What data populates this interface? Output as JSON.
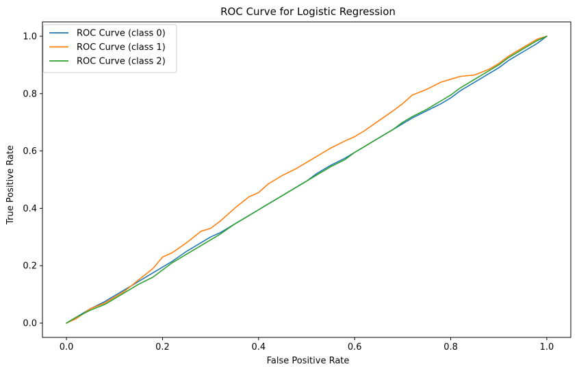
{
  "chart_data": {
    "type": "line",
    "title": "ROC Curve for Logistic Regression",
    "xlabel": "False Positive Rate",
    "ylabel": "True Positive Rate",
    "xlim": [
      -0.05,
      1.05
    ],
    "ylim": [
      -0.05,
      1.05
    ],
    "x_ticks": [
      "0.0",
      "0.2",
      "0.4",
      "0.6",
      "0.8",
      "1.0"
    ],
    "y_ticks": [
      "0.0",
      "0.2",
      "0.4",
      "0.6",
      "0.8",
      "1.0"
    ],
    "grid": false,
    "legend_position": "upper-left",
    "series": [
      {
        "name": "ROC Curve (class 0)",
        "color": "#1f77b4",
        "x": [
          0.0,
          0.02,
          0.05,
          0.08,
          0.1,
          0.12,
          0.15,
          0.18,
          0.2,
          0.22,
          0.25,
          0.28,
          0.3,
          0.32,
          0.35,
          0.38,
          0.4,
          0.42,
          0.45,
          0.48,
          0.5,
          0.52,
          0.55,
          0.58,
          0.6,
          0.62,
          0.65,
          0.68,
          0.7,
          0.72,
          0.75,
          0.78,
          0.8,
          0.82,
          0.85,
          0.88,
          0.9,
          0.92,
          0.95,
          0.98,
          1.0
        ],
        "y": [
          0.0,
          0.02,
          0.05,
          0.075,
          0.095,
          0.115,
          0.145,
          0.175,
          0.195,
          0.215,
          0.25,
          0.28,
          0.3,
          0.315,
          0.345,
          0.375,
          0.395,
          0.415,
          0.445,
          0.475,
          0.495,
          0.52,
          0.55,
          0.575,
          0.595,
          0.615,
          0.645,
          0.675,
          0.695,
          0.715,
          0.74,
          0.765,
          0.785,
          0.81,
          0.84,
          0.87,
          0.89,
          0.915,
          0.945,
          0.975,
          1.0
        ]
      },
      {
        "name": "ROC Curve (class 1)",
        "color": "#ff7f0e",
        "x": [
          0.0,
          0.02,
          0.05,
          0.08,
          0.1,
          0.12,
          0.15,
          0.18,
          0.2,
          0.22,
          0.25,
          0.28,
          0.3,
          0.32,
          0.35,
          0.38,
          0.4,
          0.42,
          0.45,
          0.48,
          0.5,
          0.52,
          0.55,
          0.58,
          0.6,
          0.62,
          0.65,
          0.68,
          0.7,
          0.72,
          0.75,
          0.78,
          0.8,
          0.82,
          0.85,
          0.88,
          0.9,
          0.92,
          0.95,
          0.98,
          1.0
        ],
        "y": [
          0.0,
          0.015,
          0.05,
          0.07,
          0.09,
          0.11,
          0.15,
          0.19,
          0.23,
          0.245,
          0.28,
          0.32,
          0.33,
          0.355,
          0.4,
          0.44,
          0.455,
          0.485,
          0.515,
          0.54,
          0.56,
          0.58,
          0.61,
          0.635,
          0.65,
          0.67,
          0.705,
          0.74,
          0.765,
          0.795,
          0.815,
          0.84,
          0.85,
          0.86,
          0.865,
          0.885,
          0.905,
          0.93,
          0.96,
          0.99,
          1.0
        ]
      },
      {
        "name": "ROC Curve (class 2)",
        "color": "#2ca02c",
        "x": [
          0.0,
          0.02,
          0.05,
          0.08,
          0.1,
          0.12,
          0.15,
          0.18,
          0.2,
          0.22,
          0.25,
          0.28,
          0.3,
          0.32,
          0.35,
          0.38,
          0.4,
          0.42,
          0.45,
          0.48,
          0.5,
          0.52,
          0.55,
          0.58,
          0.6,
          0.62,
          0.65,
          0.68,
          0.7,
          0.72,
          0.75,
          0.78,
          0.8,
          0.82,
          0.85,
          0.88,
          0.9,
          0.92,
          0.95,
          0.98,
          1.0
        ],
        "y": [
          0.0,
          0.02,
          0.045,
          0.065,
          0.085,
          0.105,
          0.135,
          0.16,
          0.185,
          0.21,
          0.24,
          0.27,
          0.29,
          0.31,
          0.345,
          0.375,
          0.395,
          0.415,
          0.445,
          0.475,
          0.495,
          0.515,
          0.545,
          0.57,
          0.595,
          0.615,
          0.645,
          0.675,
          0.7,
          0.72,
          0.745,
          0.775,
          0.795,
          0.82,
          0.85,
          0.88,
          0.9,
          0.925,
          0.955,
          0.985,
          1.0
        ]
      }
    ]
  }
}
